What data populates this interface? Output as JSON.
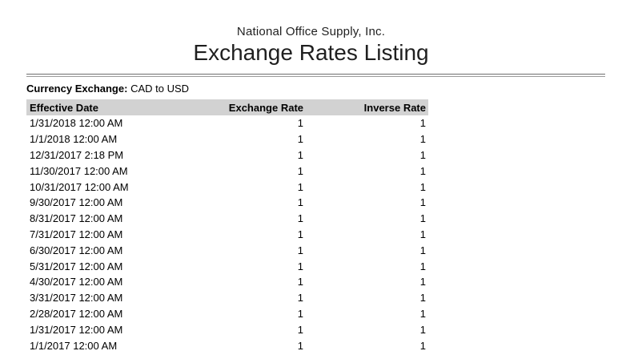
{
  "report": {
    "company": "National Office Supply, Inc.",
    "title": "Exchange Rates Listing",
    "filter_label": "Currency Exchange:",
    "filter_value": "CAD to USD"
  },
  "table": {
    "columns": [
      {
        "label": "Effective Date",
        "align": "left"
      },
      {
        "label": "Exchange Rate",
        "align": "right"
      },
      {
        "label": "Inverse Rate",
        "align": "right"
      }
    ],
    "rows": [
      [
        "1/31/2018 12:00 AM",
        "1",
        "1"
      ],
      [
        "1/1/2018 12:00 AM",
        "1",
        "1"
      ],
      [
        "12/31/2017 2:18 PM",
        "1",
        "1"
      ],
      [
        "11/30/2017 12:00 AM",
        "1",
        "1"
      ],
      [
        "10/31/2017 12:00 AM",
        "1",
        "1"
      ],
      [
        "9/30/2017 12:00 AM",
        "1",
        "1"
      ],
      [
        "8/31/2017 12:00 AM",
        "1",
        "1"
      ],
      [
        "7/31/2017 12:00 AM",
        "1",
        "1"
      ],
      [
        "6/30/2017 12:00 AM",
        "1",
        "1"
      ],
      [
        "5/31/2017 12:00 AM",
        "1",
        "1"
      ],
      [
        "4/30/2017 12:00 AM",
        "1",
        "1"
      ],
      [
        "3/31/2017 12:00 AM",
        "1",
        "1"
      ],
      [
        "2/28/2017 12:00 AM",
        "1",
        "1"
      ],
      [
        "1/31/2017 12:00 AM",
        "1",
        "1"
      ],
      [
        "1/1/2017 12:00 AM",
        "1",
        "1"
      ]
    ]
  },
  "colors": {
    "header_bg": "#d2d2d2",
    "rule_top": "#6e6e6e",
    "rule_bottom": "#9a9a9a",
    "heading_text": "#1f1f1f",
    "body_text": "#000000"
  }
}
